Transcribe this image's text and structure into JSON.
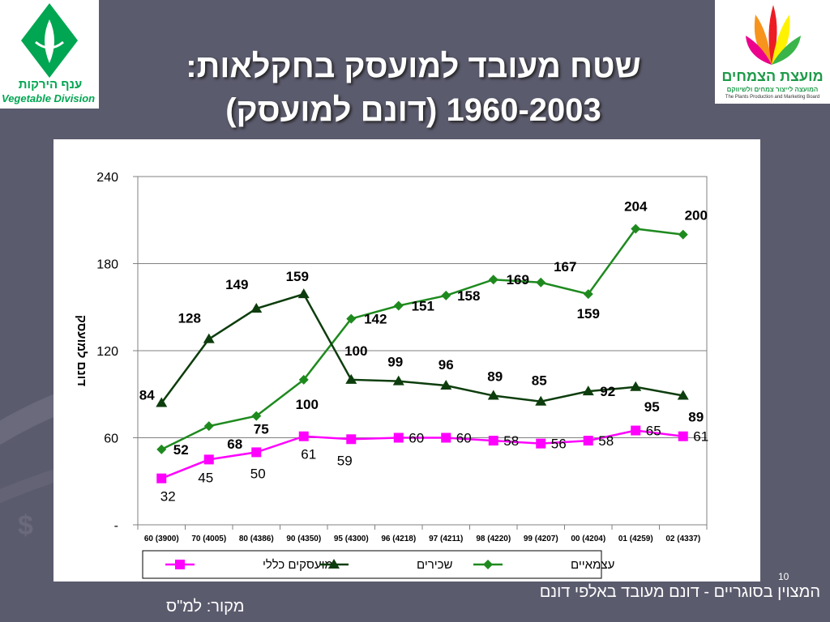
{
  "title": {
    "line1": "שטח מעובד למועסק בחקלאות:",
    "line2": "1960-2003 (דונם למועסק)"
  },
  "logos": {
    "left": {
      "hebrew": "ענף הירקות",
      "english": "Vegetable Division",
      "color": "#00a651"
    },
    "right": {
      "hebrew": "מועצת הצמחים",
      "sub_hebrew": "המועצה לייצור צמחים ולשיווקם",
      "english": "The Plants Production and Marketing Board",
      "color": "#1e9a4a"
    }
  },
  "page_number": "10",
  "footnote": "המצוין בסוגריים - דונם מעובד באלפי דונם",
  "source": "מקור: למ\"ס",
  "colors": {
    "background": "#5b5b6e",
    "self_employed": "#1e8a1e",
    "hired": "#0d3d0d",
    "total": "#ff00ff"
  },
  "chart_data": {
    "type": "line",
    "title": "",
    "xlabel": "",
    "ylabel": "דונם למועסק",
    "ylim": [
      0,
      240
    ],
    "y_ticks": [
      {
        "value": 0,
        "label": "-"
      },
      {
        "value": 60,
        "label": "60"
      },
      {
        "value": 120,
        "label": "120"
      },
      {
        "value": 180,
        "label": "180"
      },
      {
        "value": 240,
        "label": "240"
      }
    ],
    "grid": "horizontal",
    "legend_position": "bottom",
    "categories": [
      "60 (3900)",
      "70 (4005)",
      "80 (4386)",
      "90 (4350)",
      "95 (4300)",
      "96 (4218)",
      "97 (4211)",
      "98 (4220)",
      "99 (4207)",
      "00 (4204)",
      "01 (4259)",
      "02 (4337)"
    ],
    "series": [
      {
        "name": "עצמאיים",
        "marker": "diamond",
        "color": "#1e8a1e",
        "values": [
          52,
          68,
          75,
          100,
          142,
          151,
          158,
          169,
          167,
          159,
          204,
          200
        ]
      },
      {
        "name": "שכירים",
        "marker": "triangle",
        "color": "#0d3d0d",
        "values": [
          84,
          128,
          149,
          159,
          100,
          99,
          96,
          89,
          85,
          92,
          95,
          89
        ]
      },
      {
        "name": "מועסקים כללי",
        "marker": "square",
        "color": "#ff00ff",
        "values": [
          32,
          45,
          50,
          61,
          59,
          60,
          60,
          58,
          56,
          58,
          65,
          61
        ]
      }
    ]
  }
}
